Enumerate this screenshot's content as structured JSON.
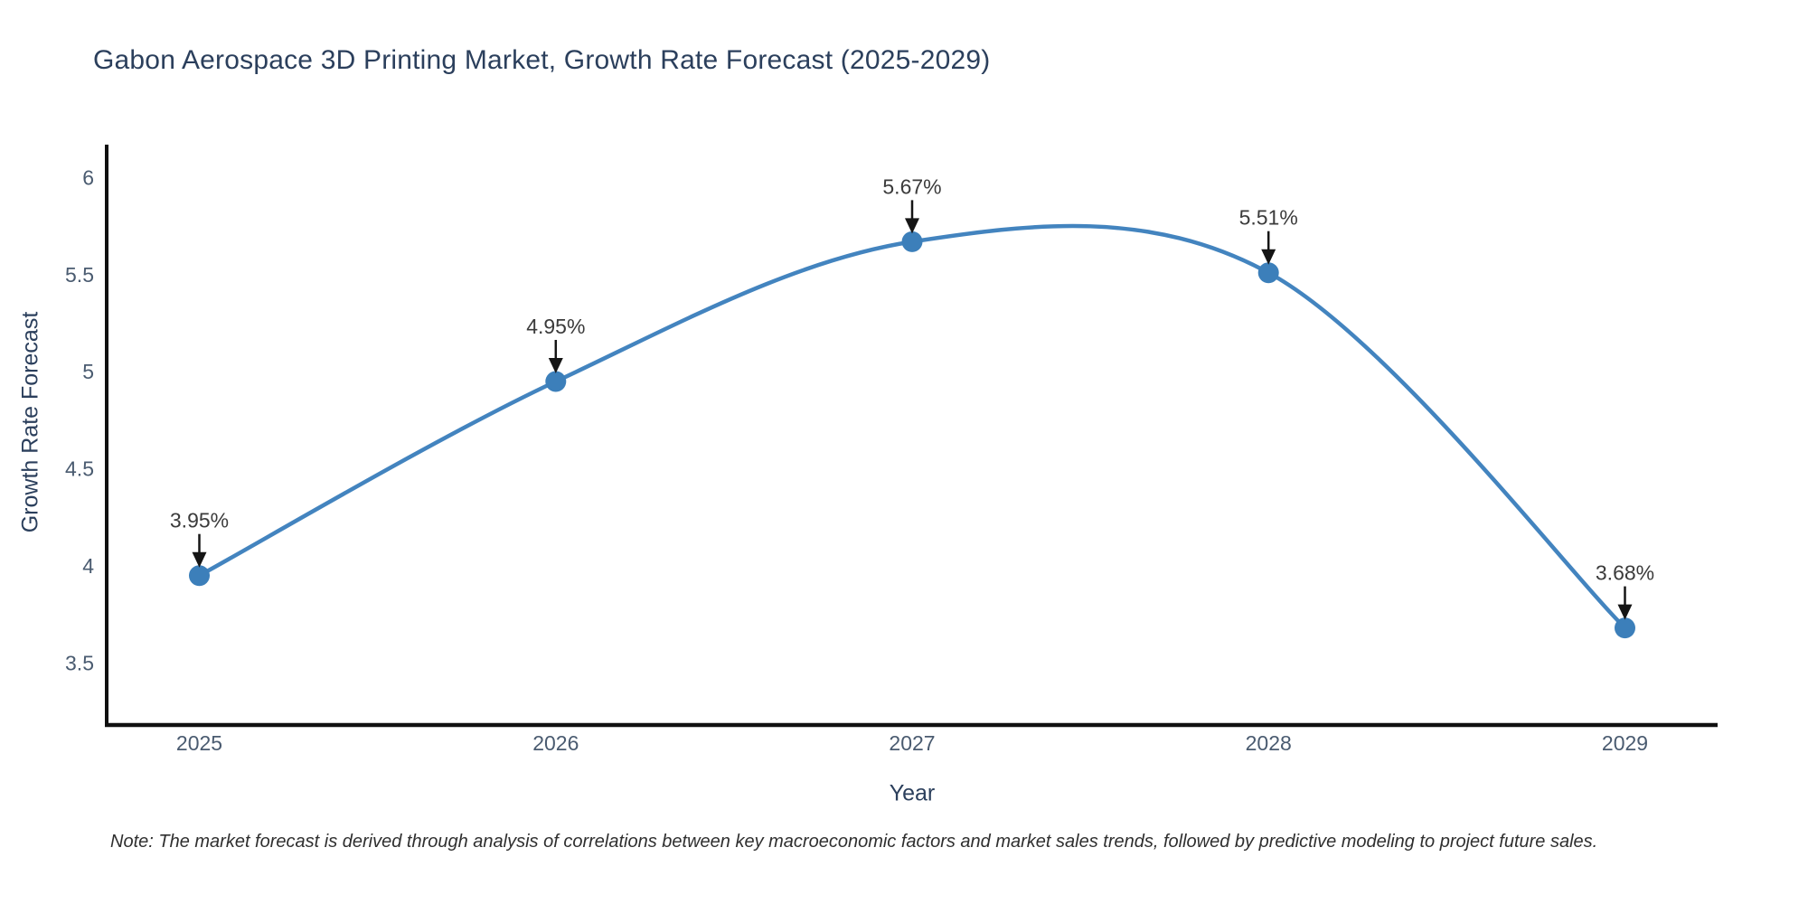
{
  "chart_data": {
    "type": "line",
    "title": "Gabon Aerospace 3D Printing Market, Growth Rate Forecast (2025-2029)",
    "xlabel": "Year",
    "ylabel": "Growth Rate Forecast",
    "x": [
      2025,
      2026,
      2027,
      2028,
      2029
    ],
    "y": [
      3.95,
      4.95,
      5.67,
      5.51,
      3.68
    ],
    "point_labels": [
      "3.95%",
      "4.95%",
      "5.67%",
      "5.51%",
      "3.68%"
    ],
    "x_ticks": [
      "2025",
      "2026",
      "2027",
      "2028",
      "2029"
    ],
    "x_tick_values": [
      2025,
      2026,
      2027,
      2028,
      2029
    ],
    "y_ticks": [
      "6",
      "5.5",
      "5",
      "4.5",
      "4",
      "3.5"
    ],
    "y_tick_values": [
      6,
      5.5,
      5,
      4.5,
      4,
      3.5
    ],
    "x_range": [
      2024.74,
      2029.26
    ],
    "y_range": [
      3.18,
      6.17
    ],
    "grid": false,
    "legend_position": "none",
    "line_shape": "spline",
    "colors": {
      "line": "#4384bf",
      "marker": "#3c7fba",
      "axis": "#101010",
      "arrow": "#151515",
      "title_text": "#2b3f5c",
      "tick_text": "#4a5b70",
      "annotation_text": "#3b3b3b",
      "background": "#ffffff"
    },
    "note": "Note: The market forecast is derived through analysis of correlations between key macroeconomic factors and market sales trends, followed by predictive modeling to project future sales."
  }
}
